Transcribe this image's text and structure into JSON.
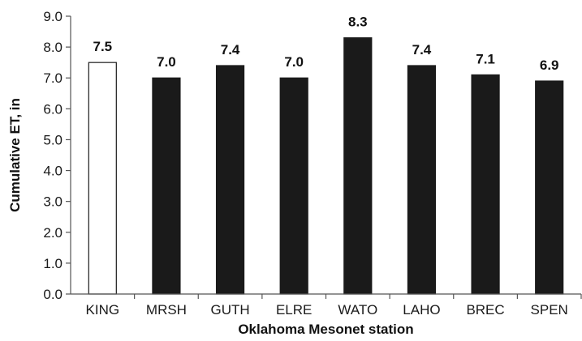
{
  "chart_data": {
    "type": "bar",
    "categories": [
      "KING",
      "MRSH",
      "GUTH",
      "ELRE",
      "WATO",
      "LAHO",
      "BREC",
      "SPEN"
    ],
    "values": [
      7.5,
      7.0,
      7.4,
      7.0,
      8.3,
      7.4,
      7.1,
      6.9
    ],
    "data_labels": [
      "7.5",
      "7.0",
      "7.4",
      "7.0",
      "8.3",
      "7.4",
      "7.1",
      "6.9"
    ],
    "y_ticks": [
      "0.0",
      "1.0",
      "2.0",
      "3.0",
      "4.0",
      "5.0",
      "6.0",
      "7.0",
      "8.0",
      "9.0"
    ],
    "xlabel": "Oklahoma Mesonet station",
    "ylabel": "Cumulative ET, in",
    "ylim": [
      0,
      9
    ],
    "grid": false,
    "legend": "none",
    "bar_fill_colors": [
      "#ffffff",
      "#1a1a1a",
      "#1a1a1a",
      "#1a1a1a",
      "#1a1a1a",
      "#1a1a1a",
      "#1a1a1a",
      "#1a1a1a"
    ],
    "bar_stroke_color": "#1a1a1a"
  }
}
